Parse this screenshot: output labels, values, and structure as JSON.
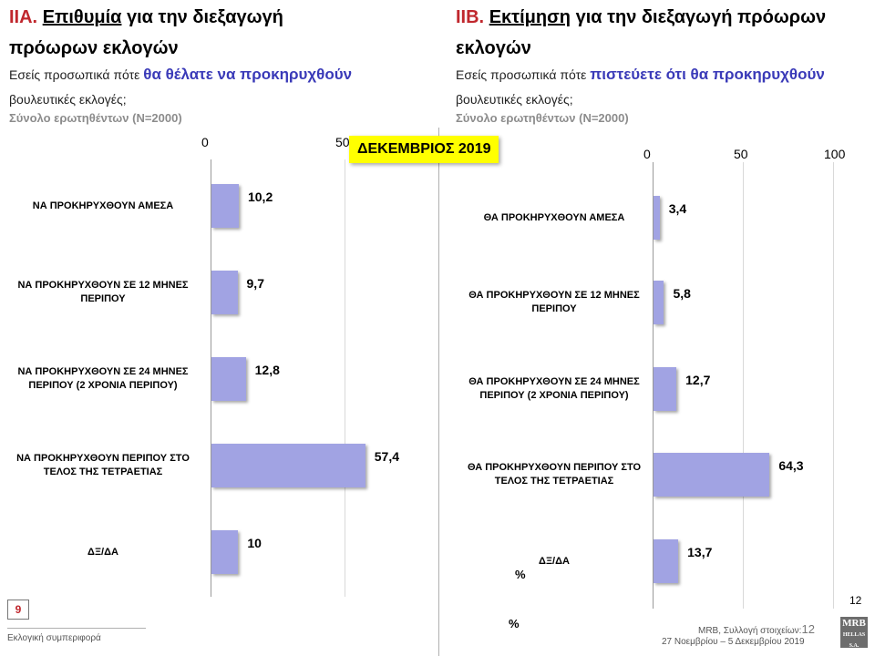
{
  "left": {
    "code": "IIA.",
    "title_ul": "Επιθυμία",
    "title_rest": " για την διεξαγωγή",
    "title_line2": "πρόωρων εκλογών",
    "q_pre": "Εσείς προσωπικά πότε ",
    "q_hl": "θα θέλατε να προκηρυχθούν",
    "q_line2": "βουλευτικές εκλογές;",
    "sample": "Σύνολο ερωτηθέντων (N=2000)"
  },
  "right": {
    "code": "IIB.",
    "title_ul": "Εκτίμηση",
    "title_rest": " για την διεξαγωγή πρόωρων",
    "title_line2": "εκλογών",
    "q_pre": "Εσείς προσωπικά πότε ",
    "q_hl": "πιστεύετε ότι θα προκηρυχθούν",
    "q_line2": "βουλευτικές εκλογές;",
    "sample": "Σύνολο ερωτηθέντων (N=2000)"
  },
  "badge": "ΔΕΚΕΜΒΡΙΟΣ 2019",
  "percent_left": "%",
  "percent_right": "%",
  "chart_data": [
    {
      "type": "bar",
      "orientation": "horizontal",
      "ticks": [
        "0",
        "50"
      ],
      "xlim": [
        0,
        100
      ],
      "categories": [
        "ΝΑ ΠΡΟΚΗΡΥΧΘΟΥΝ ΑΜΕΣΑ",
        "ΝΑ ΠΡΟΚΗΡΥΧΘΟΥΝ ΣΕ 12 ΜΗΝΕΣ ΠΕΡΙΠΟΥ",
        "ΝΑ ΠΡΟΚΗΡΥΧΘΟΥΝ ΣΕ 24 ΜΗΝΕΣ ΠΕΡΙΠΟΥ (2 ΧΡΟΝΙΑ ΠΕΡΙΠΟΥ)",
        "ΝΑ ΠΡΟΚΗΡΥΧΘΟΥΝ ΠΕΡΙΠΟΥ ΣΤΟ ΤΕΛΟΣ ΤΗΣ ΤΕΤΡΑΕΤΙΑΣ",
        "ΔΞ/ΔΑ"
      ],
      "values": [
        10.2,
        9.7,
        12.8,
        57.4,
        10
      ],
      "labels": [
        "10,2",
        "9,7",
        "12,8",
        "57,4",
        "10"
      ]
    },
    {
      "type": "bar",
      "orientation": "horizontal",
      "ticks": [
        "0",
        "50",
        "100"
      ],
      "xlim": [
        0,
        100
      ],
      "categories": [
        "ΘΑ ΠΡΟΚΗΡΥΧΘΟΥΝ ΑΜΕΣΑ",
        "ΘΑ ΠΡΟΚΗΡΥΧΘΟΥΝ ΣΕ 12 ΜΗΝΕΣ ΠΕΡΙΠΟΥ",
        "ΘΑ ΠΡΟΚΗΡΥΧΘΟΥΝ ΣΕ 24 ΜΗΝΕΣ ΠΕΡΙΠΟΥ (2 ΧΡΟΝΙΑ ΠΕΡΙΠΟΥ)",
        "ΘΑ ΠΡΟΚΗΡΥΧΘΟΥΝ ΠΕΡΙΠΟΥ ΣΤΟ ΤΕΛΟΣ ΤΗΣ ΤΕΤΡΑΕΤΙΑΣ",
        "ΔΞ/ΔΑ"
      ],
      "values": [
        3.4,
        5.8,
        12.7,
        64.3,
        13.7
      ],
      "labels": [
        "3,4",
        "5,8",
        "12,7",
        "64,3",
        "13,7"
      ]
    }
  ],
  "footer": {
    "page_box": "9",
    "section": "Εκλογική συμπεριφορά",
    "source": "MRB, Συλλογή στοιχείων:",
    "source_num": "12",
    "dates": "27 Νοεμβρίου – 5 Δεκεμβρίου 2019",
    "page_number": "12",
    "logo_top": "MRB",
    "logo_bottom": "HELLAS S.A."
  },
  "colors": {
    "bar": "#a1a3e3",
    "accent_red": "#c0272d",
    "highlight_blue": "#3a3ab8",
    "badge": "#ffff00"
  }
}
